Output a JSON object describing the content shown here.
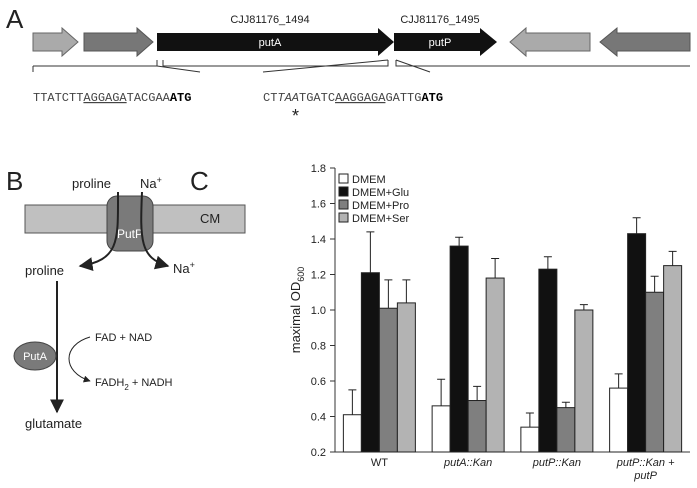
{
  "panel_a": {
    "label": "A",
    "genes": [
      {
        "name": "CJJ81176_1494",
        "label": "putA"
      },
      {
        "name": "CJJ81176_1495",
        "label": "putP"
      }
    ],
    "sequences": [
      [
        {
          "text": "TTATCTT"
        },
        {
          "text": "AGGAGA",
          "style": "underline"
        },
        {
          "text": "TACGAA"
        },
        {
          "text": "ATG",
          "style": "bold"
        }
      ],
      [
        {
          "text": "CT"
        },
        {
          "text": "TAA",
          "style": "italic"
        },
        {
          "text": "TGATC"
        },
        {
          "text": "AAGGAGA",
          "style": "underline"
        },
        {
          "text": "GATTG"
        },
        {
          "text": "ATG",
          "style": "bold"
        }
      ]
    ],
    "stop_marker": "*"
  },
  "panel_b": {
    "label": "B",
    "proline_in": "proline",
    "sodium_in": {
      "text": "Na",
      "sup": "+"
    },
    "membrane": "CM",
    "transporter": "PutP",
    "proline_out": "proline",
    "sodium_out": {
      "text": "Na",
      "sup": "+"
    },
    "enzyme": "PutA",
    "cofactors_in": "FAD + NAD",
    "cofactors_out": {
      "text": "FADH",
      "sub": "2",
      "rest": " + NADH"
    },
    "product": "glutamate"
  },
  "chart_data": {
    "type": "bar",
    "panel_label": "C",
    "ylabel": {
      "text": "maximal OD",
      "sub": "600"
    },
    "categories": [
      "WT",
      "putA::Kan",
      "putP::Kan",
      "putP::Kan + putP"
    ],
    "series": [
      {
        "name": "DMEM",
        "color": "#ffffff",
        "values": [
          0.41,
          0.46,
          0.34,
          0.56
        ],
        "errors": [
          0.14,
          0.15,
          0.08,
          0.08
        ]
      },
      {
        "name": "DMEM+Glu",
        "color": "#111111",
        "values": [
          1.21,
          1.36,
          1.23,
          1.43
        ],
        "errors": [
          0.23,
          0.05,
          0.07,
          0.09
        ]
      },
      {
        "name": "DMEM+Pro",
        "color": "#7f7f7f",
        "values": [
          1.01,
          0.49,
          0.45,
          1.1
        ],
        "errors": [
          0.16,
          0.08,
          0.03,
          0.09
        ]
      },
      {
        "name": "DMEM+Ser",
        "color": "#b3b3b3",
        "values": [
          1.04,
          1.18,
          1.0,
          1.25
        ],
        "errors": [
          0.13,
          0.11,
          0.03,
          0.08
        ]
      }
    ],
    "ylim": [
      0.2,
      1.8
    ],
    "yticks": [
      0.2,
      0.4,
      0.6,
      0.8,
      {
        "value": 1,
        "label": "1.0"
      },
      1.2,
      1.4,
      1.6,
      1.8
    ],
    "legend": "top-left"
  }
}
